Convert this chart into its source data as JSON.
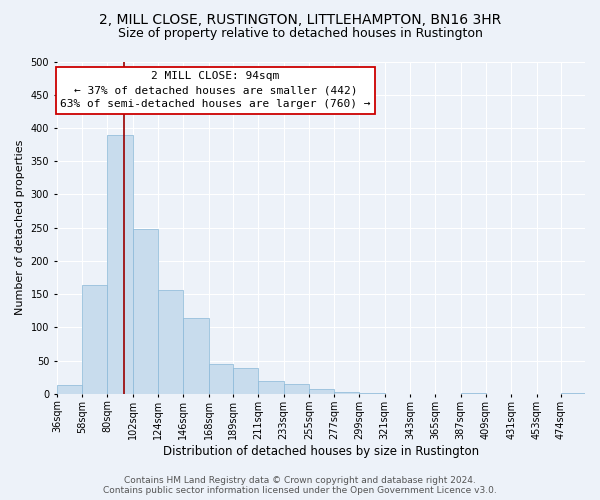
{
  "title": "2, MILL CLOSE, RUSTINGTON, LITTLEHAMPTON, BN16 3HR",
  "subtitle": "Size of property relative to detached houses in Rustington",
  "xlabel": "Distribution of detached houses by size in Rustington",
  "ylabel": "Number of detached properties",
  "bar_color": "#c8dced",
  "bar_edge_color": "#89b8d8",
  "bin_labels": [
    "36sqm",
    "58sqm",
    "80sqm",
    "102sqm",
    "124sqm",
    "146sqm",
    "168sqm",
    "189sqm",
    "211sqm",
    "233sqm",
    "255sqm",
    "277sqm",
    "299sqm",
    "321sqm",
    "343sqm",
    "365sqm",
    "387sqm",
    "409sqm",
    "431sqm",
    "453sqm",
    "474sqm"
  ],
  "bin_edges": [
    36,
    58,
    80,
    102,
    124,
    146,
    168,
    189,
    211,
    233,
    255,
    277,
    299,
    321,
    343,
    365,
    387,
    409,
    431,
    453,
    474
  ],
  "bar_heights": [
    14,
    164,
    390,
    248,
    157,
    114,
    45,
    39,
    20,
    15,
    7,
    3,
    1,
    0,
    0,
    0,
    2,
    0,
    0,
    0,
    1
  ],
  "ylim": [
    0,
    500
  ],
  "yticks": [
    0,
    50,
    100,
    150,
    200,
    250,
    300,
    350,
    400,
    450,
    500
  ],
  "vline_x": 94,
  "vline_color": "#990000",
  "annotation_title": "2 MILL CLOSE: 94sqm",
  "annotation_line1": "← 37% of detached houses are smaller (442)",
  "annotation_line2": "63% of semi-detached houses are larger (760) →",
  "annotation_box_color": "#ffffff",
  "annotation_box_edge_color": "#cc0000",
  "footer_line1": "Contains HM Land Registry data © Crown copyright and database right 2024.",
  "footer_line2": "Contains public sector information licensed under the Open Government Licence v3.0.",
  "bg_color": "#edf2f9",
  "plot_bg_color": "#edf2f9",
  "grid_color": "#ffffff",
  "title_fontsize": 10,
  "subtitle_fontsize": 9,
  "xlabel_fontsize": 8.5,
  "ylabel_fontsize": 8,
  "tick_fontsize": 7,
  "footer_fontsize": 6.5,
  "annotation_title_fontsize": 8.5,
  "annotation_text_fontsize": 8
}
